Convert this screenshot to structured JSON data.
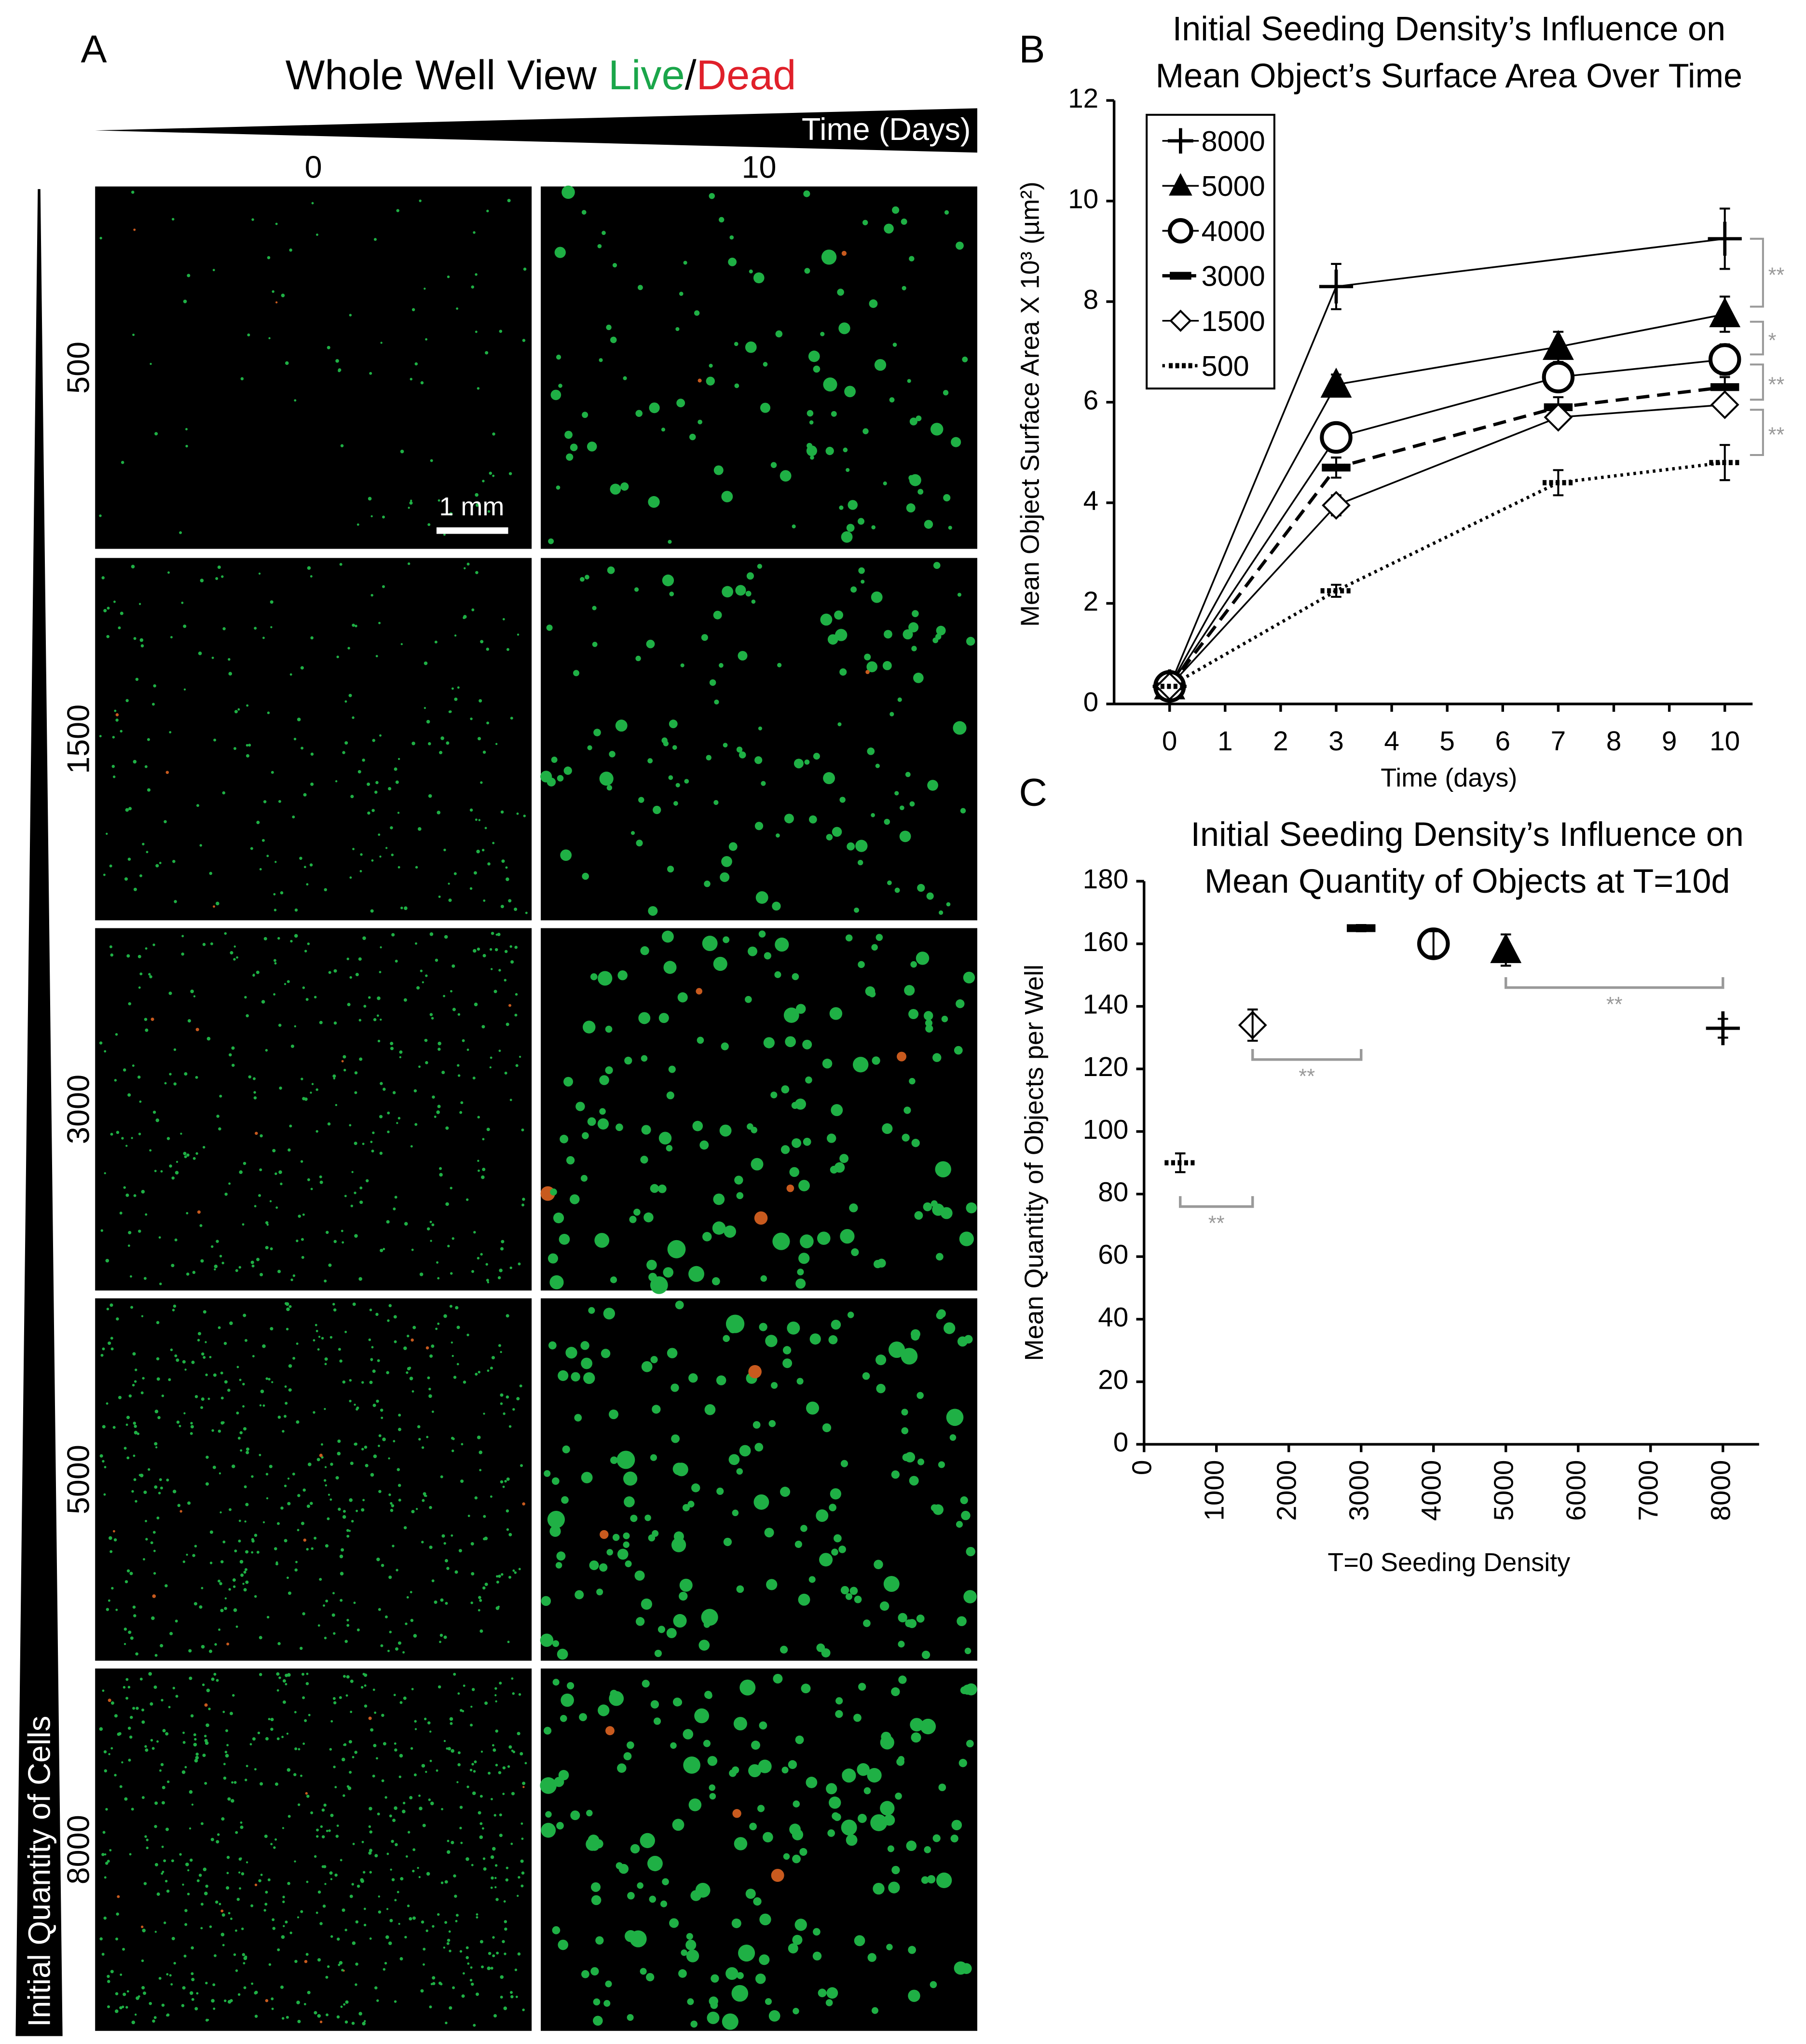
{
  "panel_a": {
    "label": "A",
    "title_parts": [
      "Whole Well View ",
      "Live",
      "/",
      "Dead"
    ],
    "title_colors": [
      "#000000",
      "#1aa64a",
      "#000000",
      "#e0202a"
    ],
    "time_label": "Time (Days)",
    "columns": [
      "0",
      "10"
    ],
    "rows": [
      "500",
      "1500",
      "3000",
      "5000",
      "8000"
    ],
    "scale_bar": "1 mm",
    "row_axis_label": "Initial Quantity of Cells"
  },
  "chart_data": [
    {
      "type": "line",
      "panel": "B",
      "title": [
        "Initial Seeding Density’s Influence on",
        "Mean Object’s Surface Area Over Time"
      ],
      "x_label": "Time (days)",
      "y_label": "Mean Object  Surface Area X 10³ (µm²)",
      "xlim": [
        -1,
        10.5
      ],
      "xticks": [
        0,
        1,
        2,
        3,
        4,
        5,
        6,
        7,
        8,
        9,
        10
      ],
      "ylim": [
        0,
        12
      ],
      "yticks": [
        0,
        2,
        4,
        6,
        8,
        10,
        12
      ],
      "legend": "upper-left",
      "annotation_color": "#999999",
      "series": [
        {
          "name": "8000",
          "color": "#000000",
          "marker": "plus",
          "line": "solid",
          "x": [
            0,
            3,
            10
          ],
          "values": [
            0.35,
            8.3,
            9.25
          ],
          "errors": [
            null,
            0.45,
            0.6
          ]
        },
        {
          "name": "5000",
          "color": "#000000",
          "marker": "triangle",
          "line": "solid",
          "x": [
            0,
            3,
            7,
            10
          ],
          "values": [
            0.35,
            6.35,
            7.1,
            7.75
          ],
          "errors": [
            null,
            0.2,
            0.3,
            0.35
          ]
        },
        {
          "name": "4000",
          "color": "#000000",
          "marker": "circle",
          "line": "solid",
          "x": [
            0,
            3,
            7,
            10
          ],
          "values": [
            0.35,
            5.3,
            6.5,
            6.85
          ],
          "errors": [
            null,
            0.25,
            0.2,
            0.3
          ]
        },
        {
          "name": "3000",
          "color": "#000000",
          "marker": "dash",
          "line": "dashed",
          "x": [
            0,
            3,
            7,
            10
          ],
          "values": [
            0.35,
            4.7,
            5.9,
            6.3
          ],
          "errors": [
            null,
            0.2,
            0.2,
            0.2
          ]
        },
        {
          "name": "1500",
          "color": "#000000",
          "marker": "diamond",
          "line": "solid",
          "x": [
            0,
            3,
            7,
            10
          ],
          "values": [
            0.35,
            3.95,
            5.7,
            5.95
          ],
          "errors": [
            null,
            0.2,
            0.15,
            0.15
          ]
        },
        {
          "name": "500",
          "color": "#000000",
          "marker": "dots",
          "line": "dotted",
          "x": [
            0,
            3,
            7,
            10
          ],
          "values": [
            0.35,
            2.25,
            4.4,
            4.8
          ],
          "errors": [
            null,
            0.12,
            0.25,
            0.35
          ]
        }
      ],
      "annotations": [
        {
          "text": "**",
          "span": [
            9.25,
            7.9
          ]
        },
        {
          "text": "*",
          "span": [
            7.6,
            6.95
          ]
        },
        {
          "text": "**",
          "span": [
            6.75,
            6.05
          ]
        },
        {
          "text": "**",
          "span": [
            5.85,
            4.95
          ]
        }
      ]
    },
    {
      "type": "scatter",
      "panel": "C",
      "title": [
        "Initial Seeding Density’s Influence on",
        "Mean Quantity of Objects at T=10d"
      ],
      "x_label": "T=0 Seeding Density",
      "y_label": "Mean Quantity of Objects per Well",
      "xlim": [
        0,
        8500
      ],
      "xticks": [
        0,
        1000,
        2000,
        3000,
        4000,
        5000,
        6000,
        7000,
        8000
      ],
      "ylim": [
        0,
        180
      ],
      "yticks": [
        0,
        20,
        40,
        60,
        80,
        100,
        120,
        140,
        160,
        180
      ],
      "color": "#000000",
      "annotation_color": "#999999",
      "x": [
        500,
        1500,
        3000,
        4000,
        5000,
        8000
      ],
      "values": [
        90,
        134,
        165,
        160,
        158,
        133
      ],
      "errors": [
        3,
        5,
        1,
        4,
        5,
        3
      ],
      "markers": [
        "dots",
        "diamond",
        "dash",
        "circle",
        "triangle",
        "plus"
      ],
      "annotations": [
        {
          "text": "**",
          "x": [
            500,
            1500
          ],
          "y": 76
        },
        {
          "text": "**",
          "x": [
            1500,
            3000
          ],
          "y": 123
        },
        {
          "text": "**",
          "x": [
            5000,
            8000
          ],
          "y": 146
        }
      ]
    }
  ]
}
